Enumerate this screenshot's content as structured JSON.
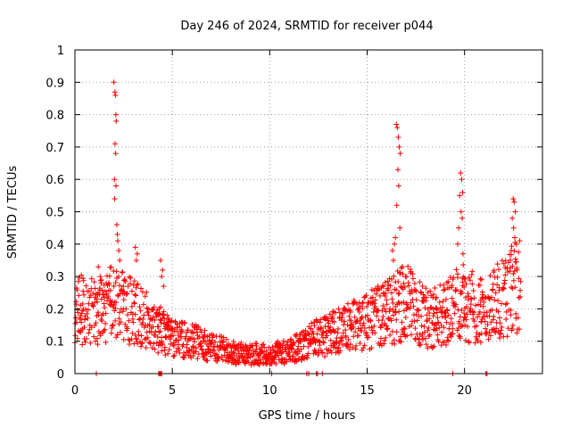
{
  "chart_data": {
    "type": "scatter",
    "title": "Day 246 of 2024, SRMTID for receiver p044",
    "xlabel": "GPS time / hours",
    "ylabel": "SRMTID / TECUs",
    "xlim": [
      0,
      24
    ],
    "ylim": [
      0,
      1
    ],
    "xticks": [
      0,
      5,
      10,
      15,
      20
    ],
    "xtick_labels": [
      "0",
      "5",
      "10",
      "15",
      "20"
    ],
    "yticks": [
      0,
      0.1,
      0.2,
      0.3,
      0.4,
      0.5,
      0.6,
      0.7,
      0.8,
      0.9,
      1
    ],
    "ytick_labels": [
      "0",
      "0.1",
      "0.2",
      "0.3",
      "0.4",
      "0.5",
      "0.6",
      "0.7",
      "0.8",
      "0.9",
      "1"
    ],
    "grid": true,
    "marker": "+",
    "color": "#ff0000",
    "baseline_description": "Dense point cloud: ~0.2 TECU near hour 0-4, decreasing to ~0.06 around hours 7-11, rising to ~0.15-0.2 after hour 13, with spikes near hours 2, 16.5, 19.8 and 22.5",
    "series": [
      {
        "name": "SRMTID",
        "x": [
          2.0,
          2.05,
          2.08,
          2.1,
          2.12,
          2.06,
          2.09,
          2.03,
          2.11,
          2.04,
          2.15,
          2.18,
          2.2,
          2.25,
          2.3,
          16.5,
          16.55,
          16.6,
          16.65,
          16.7,
          16.58,
          16.62,
          16.52,
          16.68,
          16.45,
          16.4,
          16.3,
          16.35,
          19.8,
          19.85,
          19.9,
          19.75,
          19.82,
          19.88,
          19.7,
          19.65,
          19.92,
          22.5,
          22.55,
          22.6,
          22.45,
          22.52,
          22.58,
          22.4,
          4.4,
          4.5,
          4.45,
          4.55,
          3.1,
          3.2,
          3.15,
          1.2,
          1.3,
          1.35
        ],
        "y": [
          0.9,
          0.87,
          0.86,
          0.8,
          0.78,
          0.71,
          0.68,
          0.6,
          0.58,
          0.54,
          0.46,
          0.43,
          0.41,
          0.38,
          0.35,
          0.77,
          0.76,
          0.73,
          0.7,
          0.68,
          0.63,
          0.58,
          0.52,
          0.45,
          0.42,
          0.4,
          0.38,
          0.35,
          0.62,
          0.6,
          0.56,
          0.55,
          0.5,
          0.48,
          0.45,
          0.4,
          0.37,
          0.54,
          0.53,
          0.5,
          0.48,
          0.45,
          0.42,
          0.38,
          0.35,
          0.32,
          0.3,
          0.27,
          0.39,
          0.37,
          0.35,
          0.33,
          0.3,
          0.28
        ]
      }
    ]
  }
}
